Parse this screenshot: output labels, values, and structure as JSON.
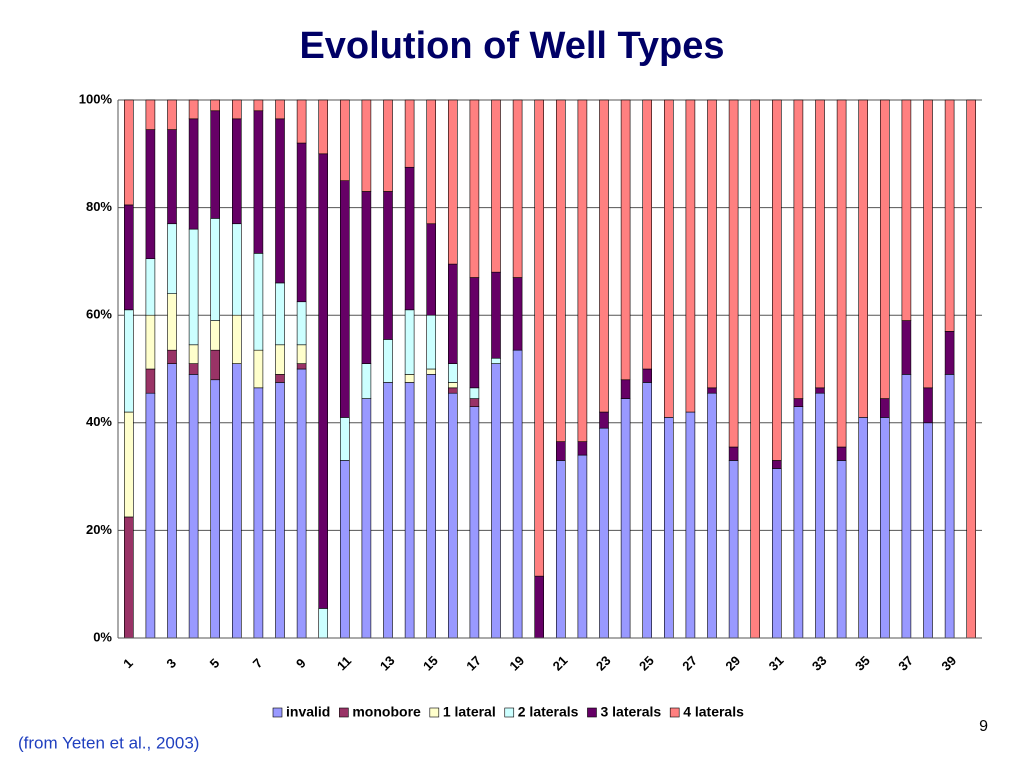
{
  "chart_data": {
    "type": "stacked_bar",
    "title": "Evolution of Well Types",
    "categories": [
      "1",
      null,
      "3",
      null,
      "5",
      null,
      "7",
      null,
      "9",
      null,
      "11",
      null,
      "13",
      null,
      "15",
      null,
      "17",
      null,
      "19",
      null,
      "21",
      null,
      "23",
      null,
      "25",
      null,
      "27",
      null,
      "29",
      null,
      "31",
      null,
      "33",
      null,
      "35",
      null,
      "37",
      null,
      "39",
      null
    ],
    "series": [
      {
        "name": "invalid",
        "color": "#9999ff",
        "values": [
          0,
          45.5,
          51,
          49,
          48,
          51,
          46.5,
          47.5,
          50,
          0,
          33,
          44.5,
          47.5,
          47.5,
          49,
          45.5,
          43,
          51,
          53.5,
          0,
          33,
          34,
          39,
          44.5,
          47.5,
          41,
          42,
          45.5,
          33,
          0,
          31.5,
          43,
          45.5,
          33,
          41,
          41,
          49,
          40,
          49,
          0
        ]
      },
      {
        "name": "monobore",
        "color": "#993366",
        "values": [
          22.5,
          4.5,
          2.5,
          2,
          5.5,
          0,
          0,
          1.5,
          1,
          0,
          0,
          0,
          0,
          0,
          0,
          1,
          1.5,
          0,
          0,
          0,
          0,
          0,
          0,
          0,
          0,
          0,
          0,
          0,
          0,
          0,
          0,
          0,
          0,
          0,
          0,
          0,
          0,
          0,
          0,
          0
        ]
      },
      {
        "name": "1 lateral",
        "color": "#ffffcc",
        "values": [
          19.5,
          10,
          10.5,
          3.5,
          5.5,
          9,
          7,
          5.5,
          3.5,
          0,
          0,
          0,
          0,
          1.5,
          1,
          1,
          0,
          0,
          0,
          0,
          0,
          0,
          0,
          0,
          0,
          0,
          0,
          0,
          0,
          0,
          0,
          0,
          0,
          0,
          0,
          0,
          0,
          0,
          0,
          0
        ]
      },
      {
        "name": "2 laterals",
        "color": "#ccffff",
        "values": [
          19,
          10.5,
          13,
          21.5,
          19,
          17,
          18,
          11.5,
          8,
          5.5,
          8,
          6.5,
          8,
          12,
          10,
          3.5,
          2,
          1,
          0,
          0,
          0,
          0,
          0,
          0,
          0,
          0,
          0,
          0,
          0,
          0,
          0,
          0,
          0,
          0,
          0,
          0,
          0,
          0,
          0,
          0
        ]
      },
      {
        "name": "3 laterals",
        "color": "#660066",
        "values": [
          19.5,
          24,
          17.5,
          20.5,
          20,
          19.5,
          26.5,
          30.5,
          29.5,
          84.5,
          44,
          32,
          27.5,
          26.5,
          17,
          18.5,
          20.5,
          16,
          13.5,
          11.5,
          3.5,
          2.5,
          3,
          3.5,
          2.5,
          0,
          0,
          1,
          2.5,
          0,
          1.5,
          1.5,
          1,
          2.5,
          0,
          3.5,
          10,
          6.5,
          8,
          0
        ]
      },
      {
        "name": "4 laterals",
        "color": "#ff8080",
        "values": [
          19.5,
          5.5,
          5.5,
          3.5,
          2,
          3.5,
          2,
          3.5,
          8,
          10,
          15,
          17,
          17,
          12.5,
          23,
          30.5,
          33,
          32,
          33,
          88.5,
          63.5,
          63.5,
          58,
          52,
          50,
          59,
          58,
          53.5,
          64.5,
          100,
          67,
          55.5,
          53.5,
          64.5,
          59,
          55.5,
          41,
          53.5,
          43,
          100
        ]
      }
    ],
    "ylim": [
      0,
      100
    ],
    "yticks": [
      {
        "value": 0,
        "label": "0%"
      },
      {
        "value": 20,
        "label": "20%"
      },
      {
        "value": 40,
        "label": "40%"
      },
      {
        "value": 60,
        "label": "60%"
      },
      {
        "value": 80,
        "label": "80%"
      },
      {
        "value": 100,
        "label": "100%"
      }
    ],
    "grid": true,
    "legend": "bottom"
  },
  "slide": {
    "page_number": "9",
    "citation": "(from Yeten et al., 2003)"
  }
}
